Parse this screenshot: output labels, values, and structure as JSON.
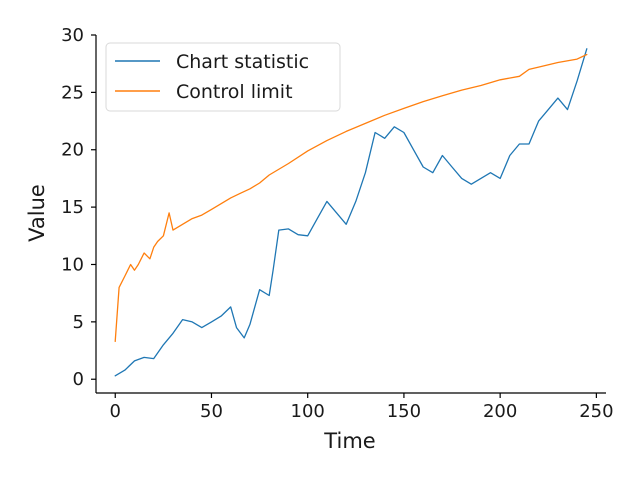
{
  "chart_data": {
    "type": "line",
    "title": "",
    "xlabel": "Time",
    "ylabel": "Value",
    "xlim": [
      -10,
      255
    ],
    "ylim": [
      -1.2,
      30
    ],
    "xticks": [
      0,
      50,
      100,
      150,
      200,
      250
    ],
    "yticks": [
      0,
      5,
      10,
      15,
      20,
      25,
      30
    ],
    "grid": false,
    "legend_position": "top-left",
    "series": [
      {
        "name": "Chart statistic",
        "color": "#1f77b4",
        "x": [
          0,
          5,
          10,
          15,
          20,
          25,
          30,
          35,
          40,
          45,
          50,
          55,
          60,
          63,
          67,
          70,
          75,
          80,
          82,
          85,
          90,
          95,
          100,
          105,
          110,
          115,
          120,
          125,
          130,
          135,
          140,
          145,
          150,
          155,
          160,
          165,
          170,
          175,
          180,
          185,
          190,
          195,
          200,
          205,
          210,
          215,
          220,
          225,
          230,
          235,
          240,
          245
        ],
        "values": [
          0.3,
          0.8,
          1.6,
          1.9,
          1.8,
          3.0,
          4.0,
          5.2,
          5.0,
          4.5,
          5.0,
          5.5,
          6.3,
          4.5,
          3.6,
          4.8,
          7.8,
          7.3,
          9.5,
          13.0,
          13.1,
          12.6,
          12.5,
          14.0,
          15.5,
          14.5,
          13.5,
          15.5,
          18.0,
          21.5,
          21.0,
          22.0,
          21.5,
          20.0,
          18.5,
          18.0,
          19.5,
          18.5,
          17.5,
          17.0,
          17.5,
          18.0,
          17.5,
          19.5,
          20.5,
          20.5,
          22.5,
          23.5,
          24.5,
          23.5,
          26.0,
          28.8
        ]
      },
      {
        "name": "Control limit",
        "color": "#ff7f0e",
        "x": [
          0,
          2,
          5,
          8,
          10,
          12,
          15,
          18,
          20,
          22,
          25,
          28,
          30,
          35,
          40,
          45,
          50,
          55,
          60,
          65,
          70,
          75,
          80,
          90,
          100,
          110,
          120,
          130,
          140,
          150,
          160,
          170,
          180,
          190,
          200,
          210,
          215,
          220,
          230,
          240,
          245
        ],
        "values": [
          3.3,
          8.0,
          9.0,
          10.0,
          9.5,
          10.0,
          11.0,
          10.5,
          11.5,
          12.0,
          12.5,
          14.5,
          13.0,
          13.5,
          14.0,
          14.3,
          14.8,
          15.3,
          15.8,
          16.2,
          16.6,
          17.1,
          17.8,
          18.8,
          19.9,
          20.8,
          21.6,
          22.3,
          23.0,
          23.6,
          24.2,
          24.7,
          25.2,
          25.6,
          26.1,
          26.4,
          27.0,
          27.2,
          27.6,
          27.9,
          28.3
        ]
      }
    ]
  }
}
